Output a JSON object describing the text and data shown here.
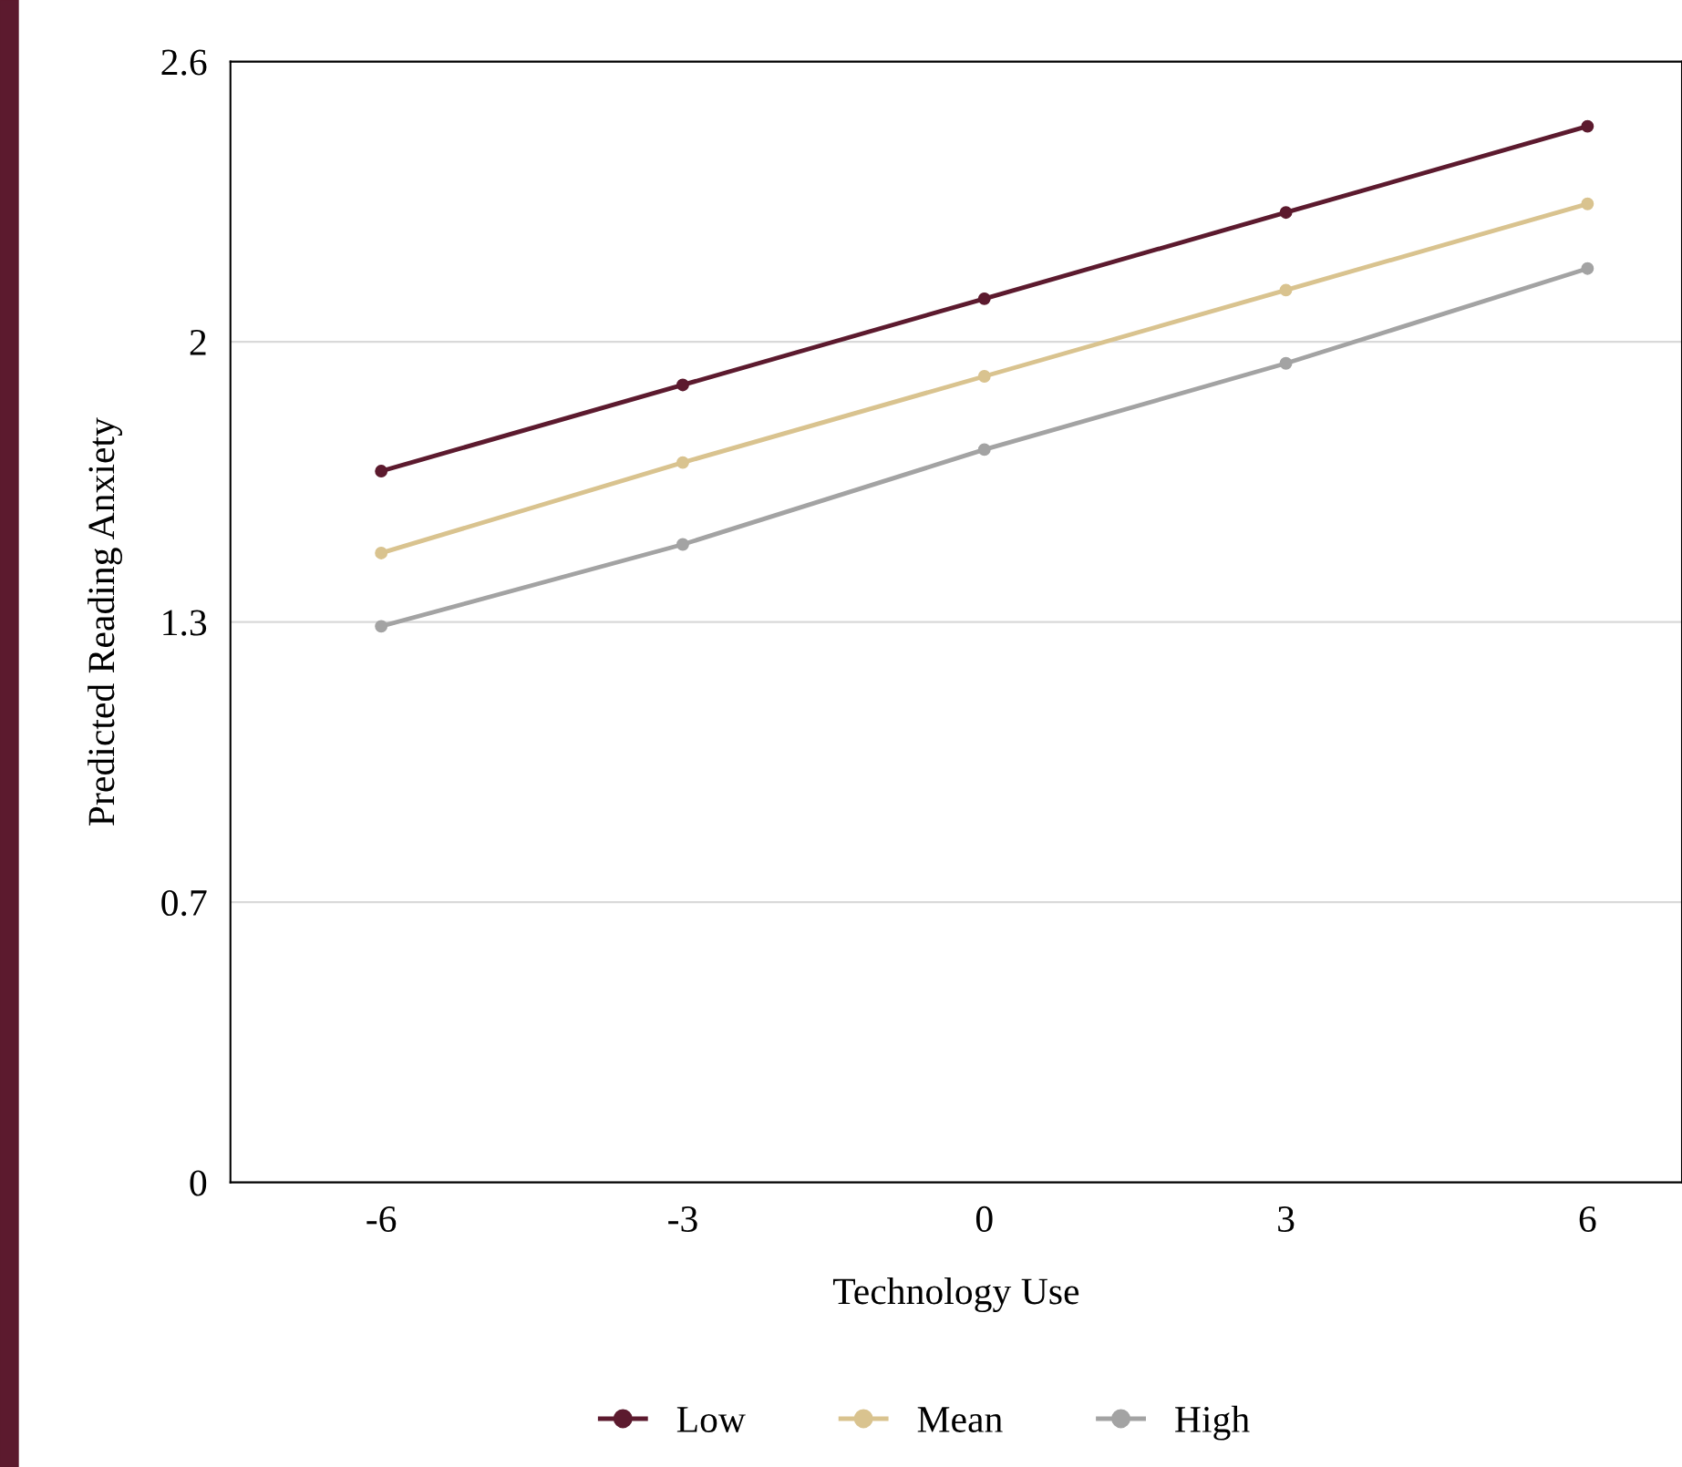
{
  "chart_data": {
    "type": "line",
    "xlabel": "Technology Use",
    "ylabel": "Predicted Reading Anxiety",
    "x": [
      -6,
      -3,
      0,
      3,
      6
    ],
    "series": [
      {
        "name": "Low",
        "color": "#5c1a2e",
        "values": [
          1.65,
          1.85,
          2.05,
          2.25,
          2.45
        ]
      },
      {
        "name": "Mean",
        "color": "#d9c38f",
        "values": [
          1.46,
          1.67,
          1.87,
          2.07,
          2.27
        ]
      },
      {
        "name": "High",
        "color": "#a3a3a3",
        "values": [
          1.29,
          1.48,
          1.7,
          1.9,
          2.12
        ]
      }
    ],
    "xlim": [
      -7.5,
      6.94
    ],
    "xticks": [
      -6,
      -3,
      0,
      3,
      6
    ],
    "ylim": [
      0,
      2.6
    ],
    "yticks": [
      0,
      {
        "value": 0.65,
        "label": "0.7"
      },
      1.3,
      {
        "value": 1.95,
        "label": "2"
      },
      2.6
    ],
    "grid": "y",
    "legend": "bottom",
    "marker": "circle",
    "line_style": "solid"
  }
}
